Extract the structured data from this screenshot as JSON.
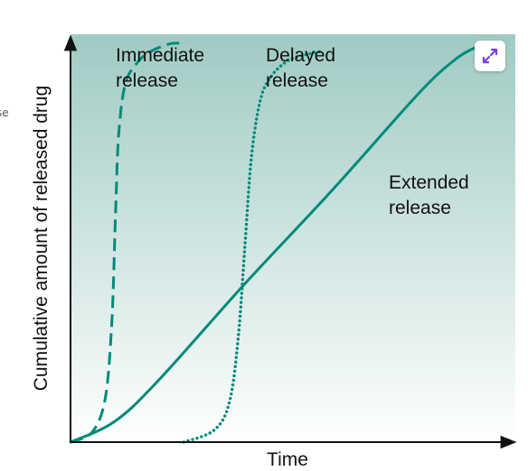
{
  "side_fragment": "se",
  "expand_button": {
    "icon": "expand-icon",
    "color": "#7b3fe4"
  },
  "chart_data": {
    "type": "line",
    "title": "",
    "xlabel": "Time",
    "ylabel": "Cumulative amount of released drug",
    "xlim": [
      0,
      100
    ],
    "ylim": [
      0,
      100
    ],
    "grid": false,
    "background_gradient": [
      "#9fcac3",
      "#ffffff"
    ],
    "line_color": "#008a7a",
    "series": [
      {
        "name": "Immediate release",
        "style": "dashed",
        "x": [
          0,
          5,
          8,
          9.5,
          10.3,
          11,
          12.5,
          15,
          18,
          22.5,
          25
        ],
        "y": [
          0,
          2.5,
          11,
          30,
          55,
          75,
          88,
          93,
          96,
          98,
          98.3
        ]
      },
      {
        "name": "Delayed release",
        "style": "dotted",
        "x": [
          26,
          33,
          36.5,
          38.5,
          40,
          41.5,
          43.5,
          46,
          50,
          55,
          58
        ],
        "y": [
          0,
          3,
          10,
          26,
          48,
          70,
          84,
          90,
          94,
          95.7,
          96.3
        ]
      },
      {
        "name": "Extended release",
        "style": "solid",
        "x": [
          0,
          10,
          20,
          40,
          60,
          80,
          88,
          92,
          94,
          96
        ],
        "y": [
          0,
          5,
          15,
          39,
          62,
          86,
          94,
          96.7,
          97.2,
          97
        ]
      }
    ],
    "annotations": [
      {
        "series": "Immediate release",
        "lines": [
          "Immediate",
          "release"
        ]
      },
      {
        "series": "Delayed release",
        "lines": [
          "Delayed",
          "release"
        ]
      },
      {
        "series": "Extended release",
        "lines": [
          "Extended",
          "release"
        ]
      }
    ]
  }
}
